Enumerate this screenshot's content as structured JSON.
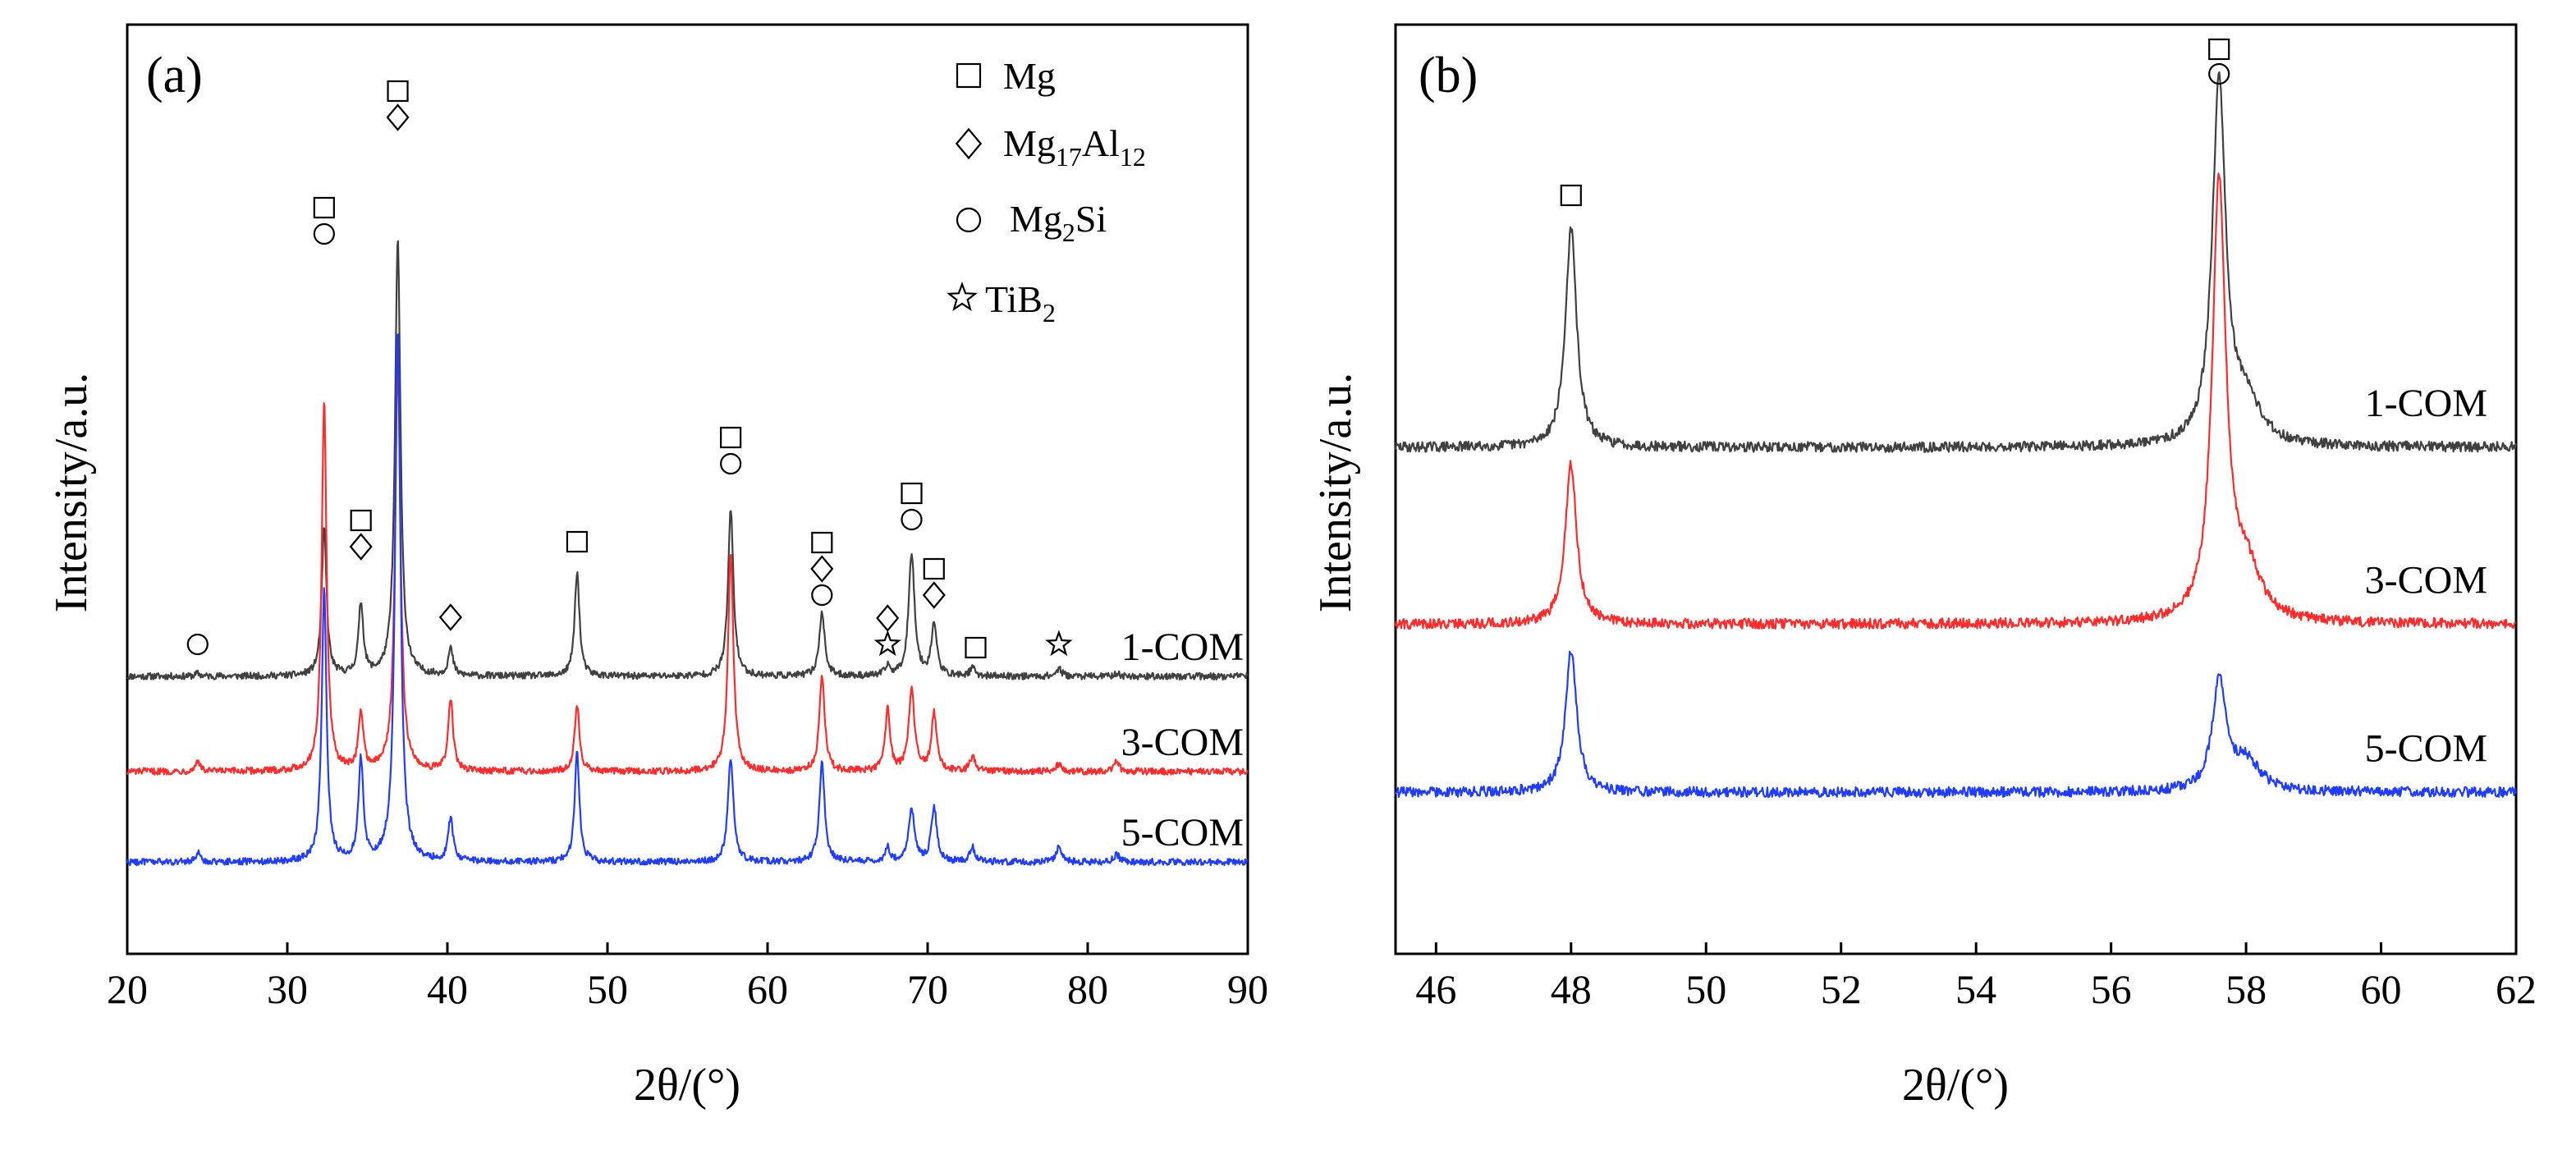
{
  "chart_data": [
    {
      "panel_label": "(a)",
      "type": "line",
      "xlabel": "2θ/(°)",
      "ylabel": "Intensity/a.u.",
      "xlim": [
        20,
        90
      ],
      "xticks": [
        20,
        30,
        40,
        50,
        60,
        70,
        80,
        90
      ],
      "series": [
        {
          "name": "1-COM",
          "color": "#404040",
          "baseline": 1.0,
          "peaks": [
            [
              24.4,
              0.03,
              0.15
            ],
            [
              32.3,
              1.55,
              0.18
            ],
            [
              34.6,
              0.75,
              0.18
            ],
            [
              36.9,
              4.6,
              0.2
            ],
            [
              40.2,
              0.28,
              0.18
            ],
            [
              48.1,
              1.1,
              0.18
            ],
            [
              57.7,
              1.75,
              0.2
            ],
            [
              63.4,
              0.68,
              0.2
            ],
            [
              67.5,
              0.1,
              0.18
            ],
            [
              69.0,
              1.3,
              0.22
            ],
            [
              70.4,
              0.55,
              0.2
            ],
            [
              72.8,
              0.08,
              0.2
            ],
            [
              78.2,
              0.08,
              0.2
            ],
            [
              81.8,
              0.03,
              0.2
            ]
          ]
        },
        {
          "name": "3-COM",
          "color": "#ff2a2a",
          "baseline": 0.0,
          "peaks": [
            [
              24.4,
              0.12,
              0.15
            ],
            [
              32.3,
              3.9,
              0.18
            ],
            [
              34.6,
              0.6,
              0.18
            ],
            [
              36.9,
              4.3,
              0.2
            ],
            [
              40.2,
              0.75,
              0.18
            ],
            [
              48.1,
              0.7,
              0.18
            ],
            [
              57.7,
              2.3,
              0.2
            ],
            [
              63.4,
              1.0,
              0.2
            ],
            [
              67.5,
              0.65,
              0.18
            ],
            [
              69.0,
              0.85,
              0.22
            ],
            [
              70.4,
              0.6,
              0.2
            ],
            [
              72.8,
              0.15,
              0.2
            ],
            [
              78.2,
              0.08,
              0.2
            ],
            [
              81.8,
              0.1,
              0.2
            ]
          ]
        },
        {
          "name": "5-COM",
          "color": "#1f3cff",
          "baseline": -0.95,
          "peaks": [
            [
              24.4,
              0.1,
              0.15
            ],
            [
              32.3,
              2.85,
              0.18
            ],
            [
              34.6,
              1.05,
              0.18
            ],
            [
              36.9,
              5.6,
              0.2
            ],
            [
              40.2,
              0.45,
              0.18
            ],
            [
              48.1,
              1.15,
              0.18
            ],
            [
              57.7,
              1.1,
              0.2
            ],
            [
              63.4,
              1.05,
              0.2
            ],
            [
              67.5,
              0.15,
              0.18
            ],
            [
              69.0,
              0.55,
              0.22
            ],
            [
              70.4,
              0.58,
              0.2
            ],
            [
              72.8,
              0.15,
              0.2
            ],
            [
              78.2,
              0.15,
              0.2
            ],
            [
              81.8,
              0.08,
              0.2
            ]
          ]
        }
      ],
      "phase_markers": [
        {
          "x": 24.4,
          "symbols": [
            "circle"
          ]
        },
        {
          "x": 32.3,
          "symbols": [
            "square",
            "circle"
          ]
        },
        {
          "x": 34.6,
          "symbols": [
            "square",
            "diamond"
          ]
        },
        {
          "x": 36.9,
          "symbols": [
            "square",
            "diamond"
          ]
        },
        {
          "x": 40.2,
          "symbols": [
            "diamond"
          ]
        },
        {
          "x": 48.1,
          "symbols": [
            "square"
          ]
        },
        {
          "x": 57.7,
          "symbols": [
            "square",
            "circle"
          ]
        },
        {
          "x": 63.4,
          "symbols": [
            "square",
            "diamond",
            "circle"
          ]
        },
        {
          "x": 67.5,
          "symbols": [
            "diamond",
            "star"
          ]
        },
        {
          "x": 69.0,
          "symbols": [
            "square",
            "circle"
          ]
        },
        {
          "x": 70.4,
          "symbols": [
            "square",
            "diamond"
          ]
        },
        {
          "x": 73.0,
          "symbols": [
            "square"
          ]
        },
        {
          "x": 78.2,
          "symbols": [
            "star"
          ]
        }
      ],
      "legend": [
        {
          "symbol": "square",
          "label": "Mg",
          "main": "Mg",
          "subs": []
        },
        {
          "symbol": "diamond",
          "label": "Mg17Al12",
          "main": "Mg",
          "subs": [
            "17",
            "Al",
            "12"
          ]
        },
        {
          "symbol": "circle",
          "label": "Mg2Si",
          "main": "Mg",
          "subs": [
            "2",
            "Si",
            ""
          ]
        },
        {
          "symbol": "star",
          "label": "TiB2",
          "main": "TiB",
          "subs": [
            "2",
            "",
            ""
          ]
        }
      ]
    },
    {
      "panel_label": "(b)",
      "type": "line",
      "xlabel": "2θ/(°)",
      "ylabel": "Intensity/a.u.",
      "xlim": [
        45.4,
        62
      ],
      "xticks": [
        46,
        48,
        50,
        52,
        54,
        56,
        58,
        60,
        62
      ],
      "series": [
        {
          "name": "1-COM",
          "color": "#404040",
          "baseline": 0.0,
          "peaks": [
            [
              48.0,
              1.3,
              0.1
            ],
            [
              57.6,
              2.15,
              0.12
            ],
            [
              58.0,
              0.25,
              0.25
            ]
          ]
        },
        {
          "name": "3-COM",
          "color": "#ff2a2a",
          "baseline": -1.05,
          "peaks": [
            [
              48.0,
              0.95,
              0.1
            ],
            [
              57.6,
              2.6,
              0.12
            ],
            [
              58.0,
              0.3,
              0.25
            ]
          ]
        },
        {
          "name": "5-COM",
          "color": "#1f3cff",
          "baseline": -2.05,
          "peaks": [
            [
              48.0,
              0.85,
              0.1
            ],
            [
              57.6,
              0.65,
              0.12
            ],
            [
              58.0,
              0.18,
              0.25
            ]
          ]
        }
      ],
      "phase_markers": [
        {
          "x": 48.0,
          "symbols": [
            "square"
          ]
        },
        {
          "x": 57.6,
          "symbols": [
            "square",
            "circle"
          ]
        }
      ]
    }
  ]
}
